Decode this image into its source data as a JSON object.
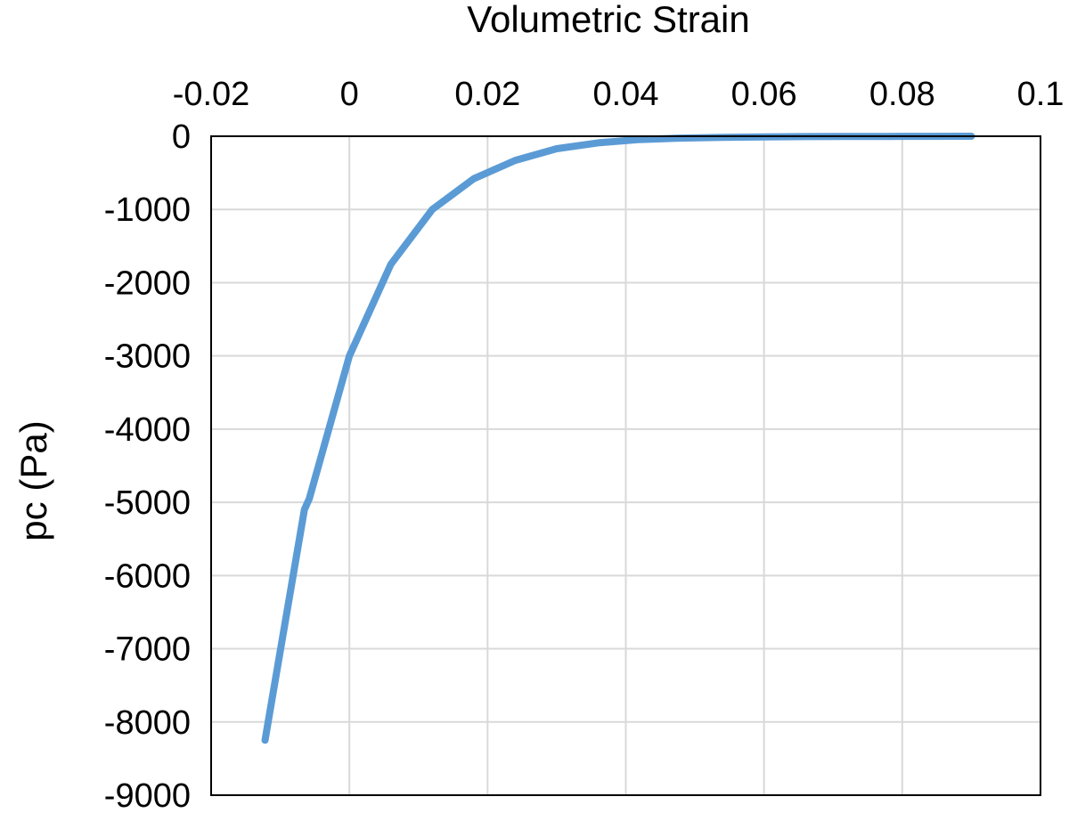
{
  "chart_data": {
    "type": "line",
    "title": "",
    "xlabel": "Volumetric  Strain",
    "ylabel": "pc (Pa)",
    "x_axis_position": "top",
    "xlim": [
      -0.02,
      0.1
    ],
    "ylim": [
      -9000,
      0
    ],
    "xticks": [
      -0.02,
      0,
      0.02,
      0.04,
      0.06,
      0.08,
      0.1
    ],
    "xtick_labels": [
      "-0.02",
      "0",
      "0.02",
      "0.04",
      "0.06",
      "0.08",
      "0.1"
    ],
    "yticks": [
      0,
      -1000,
      -2000,
      -3000,
      -4000,
      -5000,
      -6000,
      -7000,
      -8000,
      -9000
    ],
    "ytick_labels": [
      "0",
      "-1000",
      "-2000",
      "-3000",
      "-4000",
      "-5000",
      "-6000",
      "-7000",
      "-8000",
      "-9000"
    ],
    "grid": true,
    "legend": "none",
    "colors": {
      "line": "#5B9BD5",
      "grid": "#D9D9D9",
      "frame": "#000000"
    },
    "series": [
      {
        "x": [
          -0.0122,
          -0.0065,
          -0.0058,
          0.0,
          0.006,
          0.012,
          0.018,
          0.024,
          0.03,
          0.036,
          0.042,
          0.048,
          0.054,
          0.06,
          0.066,
          0.072,
          0.078,
          0.084,
          0.09
        ],
        "values": [
          -8250,
          -5100,
          -4950,
          -3000,
          -1750,
          -1000,
          -580,
          -330,
          -170,
          -90,
          -45,
          -25,
          -14,
          -8,
          -5,
          -3,
          -2,
          -1,
          0
        ]
      }
    ]
  }
}
